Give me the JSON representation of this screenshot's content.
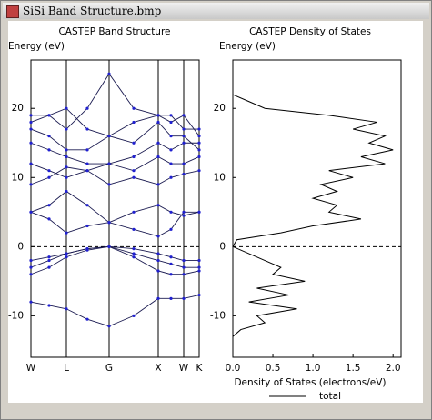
{
  "window": {
    "title": "SiSi Band Structure.bmp"
  },
  "chart_data": [
    {
      "type": "line",
      "title": "CASTEP Band Structure",
      "y_label": "Energy (eV)",
      "x": [
        0,
        20,
        39,
        62,
        86,
        113,
        140,
        154,
        168,
        185
      ],
      "series": [
        {
          "values": [
            -8,
            -8.5,
            -9,
            -10.5,
            -11.5,
            -10,
            -7.5,
            -7.5,
            -7.5,
            -7
          ]
        },
        {
          "values": [
            -4,
            -3,
            -1.5,
            -0.5,
            0,
            -1.5,
            -3.5,
            -4,
            -4,
            -3.5
          ]
        },
        {
          "values": [
            -3,
            -2,
            -1,
            -0.3,
            0,
            -1,
            -2,
            -2.5,
            -3,
            -3
          ]
        },
        {
          "values": [
            -2,
            -1.5,
            -1,
            -0.3,
            0,
            -0.3,
            -1,
            -1.5,
            -2,
            -2
          ]
        },
        {
          "values": [
            5,
            4,
            2,
            3,
            3.5,
            2.5,
            1.5,
            2.5,
            5,
            5
          ]
        },
        {
          "values": [
            5,
            6,
            8,
            6,
            3.5,
            5,
            6,
            5,
            4.5,
            5
          ]
        },
        {
          "values": [
            9,
            10,
            11.5,
            11,
            9,
            10,
            9,
            10,
            10.5,
            11
          ]
        },
        {
          "values": [
            12,
            11,
            10,
            11,
            12,
            11,
            13,
            12,
            12,
            13
          ]
        },
        {
          "values": [
            15,
            14,
            13,
            12,
            12,
            13,
            15,
            14,
            15,
            15
          ]
        },
        {
          "values": [
            17,
            16,
            14,
            14,
            16,
            15,
            18,
            16,
            16,
            14
          ]
        },
        {
          "values": [
            19,
            19,
            17,
            20,
            25,
            20,
            19,
            19,
            17,
            17
          ]
        },
        {
          "values": [
            18,
            19,
            20,
            17,
            16,
            18,
            19,
            18,
            19,
            16
          ]
        }
      ],
      "line_color": "#1a1a50",
      "marker_color": "#2020d0",
      "xlim": [
        0,
        185
      ],
      "xticks": [
        {
          "value": 0,
          "label": "W"
        },
        {
          "value": 39,
          "label": "L"
        },
        {
          "value": 86,
          "label": "G"
        },
        {
          "value": 140,
          "label": "X"
        },
        {
          "value": 168,
          "label": "W"
        },
        {
          "value": 185,
          "label": "K"
        }
      ],
      "ylim": [
        -16,
        27
      ],
      "yticks": [
        -10,
        0,
        10,
        20
      ],
      "x_grid": true,
      "zero_line": true
    },
    {
      "type": "line",
      "orientation": "horizontal",
      "title": "CASTEP Density of States",
      "y_label": "Energy (eV)",
      "x_label": "Density of States (electrons/eV)",
      "y": [
        -13,
        -12,
        -11,
        -10,
        -9,
        -8,
        -7,
        -6,
        -5,
        -4,
        -3,
        -2,
        -1,
        0,
        1,
        2,
        3,
        4,
        5,
        6,
        7,
        8,
        9,
        10,
        11,
        12,
        13,
        14,
        15,
        16,
        17,
        18,
        19,
        20,
        21,
        22,
        23,
        24
      ],
      "series": [
        {
          "name": "total",
          "color": "#000000",
          "values": [
            0,
            0.1,
            0.4,
            0.3,
            0.8,
            0.2,
            0.7,
            0.3,
            0.9,
            0.5,
            0.6,
            0.4,
            0.2,
            0,
            0.05,
            0.6,
            1.0,
            1.6,
            1.2,
            1.3,
            1.0,
            1.3,
            1.1,
            1.5,
            1.2,
            1.9,
            1.6,
            2.0,
            1.7,
            1.9,
            1.5,
            1.8,
            1.2,
            0.4,
            0.2,
            0,
            0,
            0
          ]
        }
      ],
      "xlim": [
        0,
        2.1
      ],
      "xticks": [
        {
          "value": 0,
          "label": "0.0"
        },
        0.5,
        {
          "value": 1,
          "label": "1.0"
        },
        1.5,
        {
          "value": 2,
          "label": "2.0"
        }
      ],
      "ylim": [
        -16,
        27
      ],
      "yticks": [
        -10,
        0,
        10,
        20
      ],
      "zero_line": true
    }
  ]
}
